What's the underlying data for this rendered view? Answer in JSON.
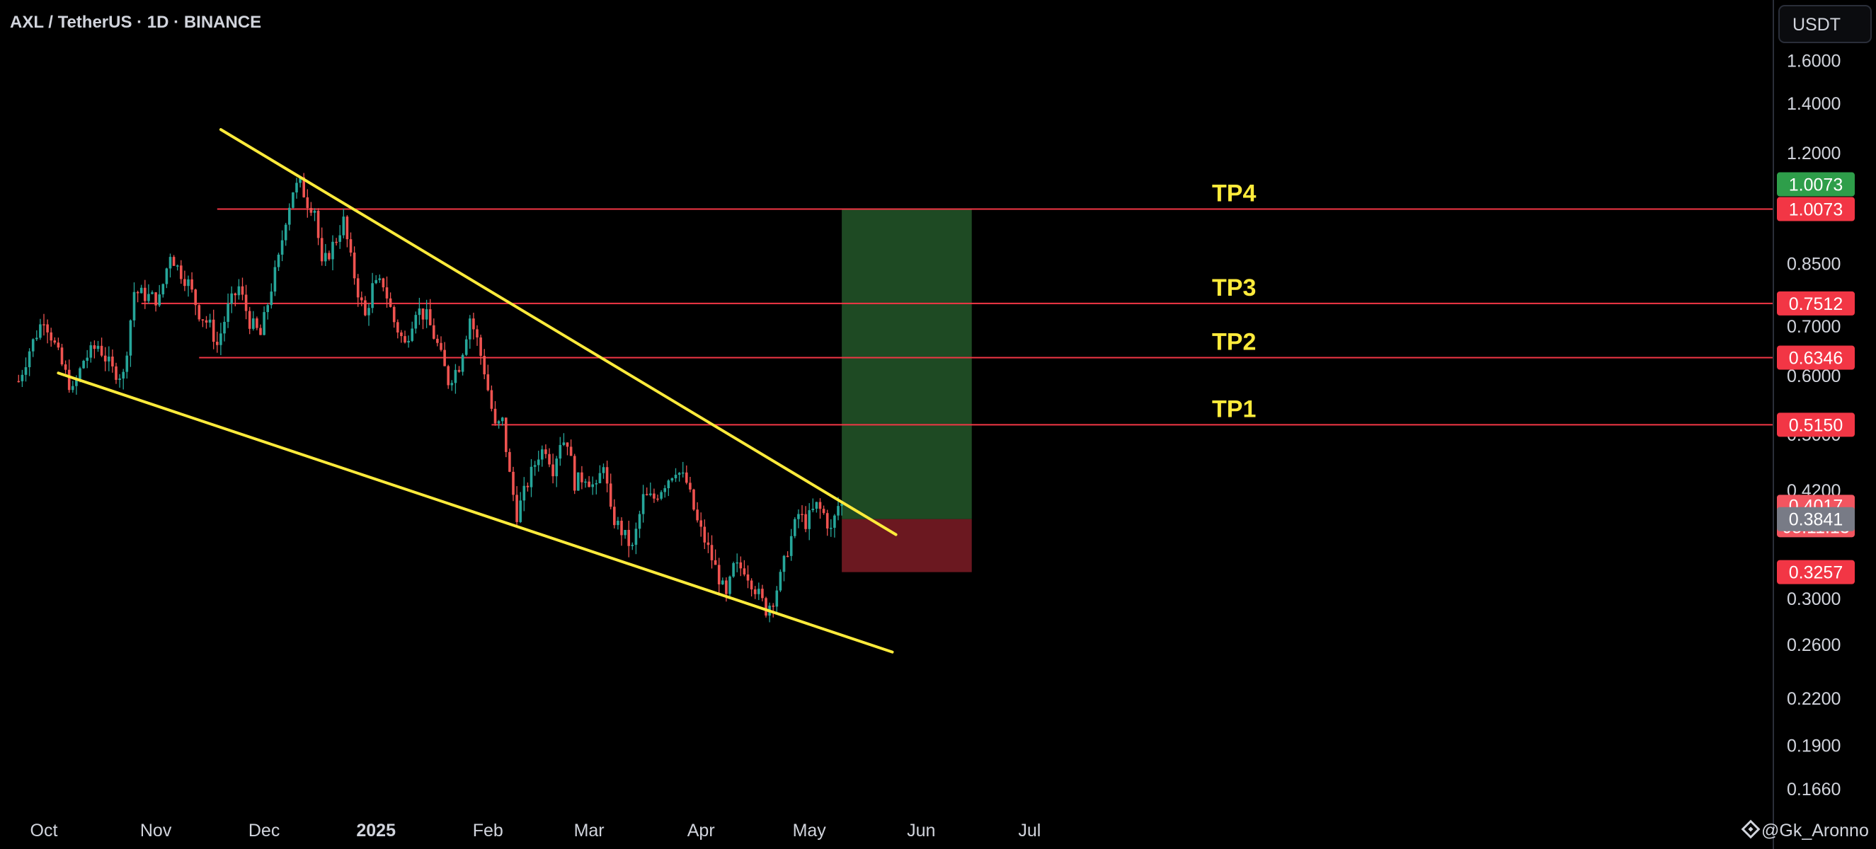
{
  "header": {
    "title": "AXL / TetherUS · 1D · BINANCE"
  },
  "currency_button": {
    "label": "USDT"
  },
  "watermark": {
    "label": "Gk_Aronno"
  },
  "colors": {
    "background": "#000000",
    "up_candle": "#26a69a",
    "down_candle": "#ef5350",
    "trendline": "#ffeb3b",
    "level_line": "#f23645",
    "target_zone": "#1e4a23",
    "stop_zone": "#6b1820",
    "target_tag": "#2e9e4a",
    "stop_tag": "#f23645",
    "entry_tag": "#787b86",
    "price_tag": "#f25560"
  },
  "chart_data": {
    "type": "candlestick",
    "title": "AXL / TetherUS · 1D · BINANCE",
    "scale": "log",
    "ylim": [
      0.155,
      1.75
    ],
    "x_ticks": [
      {
        "label": "Oct",
        "date": "2024-10-01",
        "bold": false
      },
      {
        "label": "Nov",
        "date": "2024-11-01",
        "bold": false
      },
      {
        "label": "Dec",
        "date": "2024-12-01",
        "bold": false
      },
      {
        "label": "2025",
        "date": "2025-01-01",
        "bold": true
      },
      {
        "label": "Feb",
        "date": "2025-02-01",
        "bold": false
      },
      {
        "label": "Mar",
        "date": "2025-03-01",
        "bold": false
      },
      {
        "label": "Apr",
        "date": "2025-04-01",
        "bold": false
      },
      {
        "label": "May",
        "date": "2025-05-01",
        "bold": false
      },
      {
        "label": "Jun",
        "date": "2025-06-01",
        "bold": false
      },
      {
        "label": "Jul",
        "date": "2025-07-01",
        "bold": false
      }
    ],
    "y_ticks": [
      "1.6000",
      "1.4000",
      "1.2000",
      "0.8500",
      "0.7000",
      "0.6000",
      "0.5000",
      "0.4200",
      "0.3000",
      "0.2600",
      "0.2200",
      "0.1900",
      "0.1660"
    ],
    "price_series": [
      [
        "2024-09-24",
        0.59
      ],
      [
        "2024-09-27",
        0.65
      ],
      [
        "2024-10-01",
        0.72
      ],
      [
        "2024-10-03",
        0.68
      ],
      [
        "2024-10-06",
        0.62
      ],
      [
        "2024-10-09",
        0.57
      ],
      [
        "2024-10-12",
        0.63
      ],
      [
        "2024-10-16",
        0.66
      ],
      [
        "2024-10-20",
        0.61
      ],
      [
        "2024-10-23",
        0.6
      ],
      [
        "2024-10-26",
        0.78
      ],
      [
        "2024-10-29",
        0.77
      ],
      [
        "2024-11-02",
        0.76
      ],
      [
        "2024-11-05",
        0.88
      ],
      [
        "2024-11-07",
        0.84
      ],
      [
        "2024-11-10",
        0.8
      ],
      [
        "2024-11-13",
        0.73
      ],
      [
        "2024-11-16",
        0.7
      ],
      [
        "2024-11-18",
        0.66
      ],
      [
        "2024-11-21",
        0.74
      ],
      [
        "2024-11-24",
        0.79
      ],
      [
        "2024-11-27",
        0.71
      ],
      [
        "2024-11-30",
        0.68
      ],
      [
        "2024-12-03",
        0.79
      ],
      [
        "2024-12-05",
        0.86
      ],
      [
        "2024-12-07",
        0.98
      ],
      [
        "2024-12-09",
        1.07
      ],
      [
        "2024-12-11",
        1.09
      ],
      [
        "2024-12-13",
        1.03
      ],
      [
        "2024-12-15",
        1.01
      ],
      [
        "2024-12-17",
        0.84
      ],
      [
        "2024-12-19",
        0.88
      ],
      [
        "2024-12-21",
        0.92
      ],
      [
        "2024-12-23",
        0.97
      ],
      [
        "2024-12-25",
        0.86
      ],
      [
        "2024-12-27",
        0.78
      ],
      [
        "2024-12-29",
        0.72
      ],
      [
        "2024-12-31",
        0.79
      ],
      [
        "2025-01-03",
        0.8
      ],
      [
        "2025-01-06",
        0.71
      ],
      [
        "2025-01-09",
        0.66
      ],
      [
        "2025-01-12",
        0.74
      ],
      [
        "2025-01-15",
        0.72
      ],
      [
        "2025-01-18",
        0.66
      ],
      [
        "2025-01-21",
        0.59
      ],
      [
        "2025-01-24",
        0.62
      ],
      [
        "2025-01-27",
        0.72
      ],
      [
        "2025-01-29",
        0.67
      ],
      [
        "2025-01-31",
        0.61
      ],
      [
        "2025-02-03",
        0.51
      ],
      [
        "2025-02-05",
        0.52
      ],
      [
        "2025-02-07",
        0.44
      ],
      [
        "2025-02-09",
        0.39
      ],
      [
        "2025-02-12",
        0.43
      ],
      [
        "2025-02-15",
        0.47
      ],
      [
        "2025-02-17",
        0.48
      ],
      [
        "2025-02-19",
        0.45
      ],
      [
        "2025-02-21",
        0.49
      ],
      [
        "2025-02-23",
        0.49
      ],
      [
        "2025-02-25",
        0.43
      ],
      [
        "2025-02-28",
        0.44
      ],
      [
        "2025-03-03",
        0.42
      ],
      [
        "2025-03-05",
        0.46
      ],
      [
        "2025-03-07",
        0.39
      ],
      [
        "2025-03-10",
        0.37
      ],
      [
        "2025-03-13",
        0.35
      ],
      [
        "2025-03-16",
        0.41
      ],
      [
        "2025-03-19",
        0.41
      ],
      [
        "2025-03-22",
        0.43
      ],
      [
        "2025-03-25",
        0.45
      ],
      [
        "2025-03-28",
        0.43
      ],
      [
        "2025-03-31",
        0.38
      ],
      [
        "2025-04-03",
        0.35
      ],
      [
        "2025-04-06",
        0.32
      ],
      [
        "2025-04-08",
        0.3
      ],
      [
        "2025-04-10",
        0.33
      ],
      [
        "2025-04-13",
        0.33
      ],
      [
        "2025-04-16",
        0.31
      ],
      [
        "2025-04-19",
        0.29
      ],
      [
        "2025-04-21",
        0.3
      ],
      [
        "2025-04-23",
        0.32
      ],
      [
        "2025-04-25",
        0.35
      ],
      [
        "2025-04-28",
        0.39
      ],
      [
        "2025-04-30",
        0.38
      ],
      [
        "2025-05-03",
        0.4
      ],
      [
        "2025-05-05",
        0.39
      ],
      [
        "2025-05-07",
        0.37
      ],
      [
        "2025-05-09",
        0.4
      ],
      [
        "2025-05-10",
        0.4017
      ]
    ],
    "trendlines": [
      {
        "name": "upper",
        "points": [
          [
            "2024-11-19",
            1.29
          ],
          [
            "2025-05-25",
            0.366
          ]
        ]
      },
      {
        "name": "lower",
        "points": [
          [
            "2024-10-05",
            0.605
          ],
          [
            "2025-05-24",
            0.254
          ]
        ]
      }
    ],
    "levels": [
      {
        "name": "TP4",
        "value": 1.0073,
        "start": "2024-11-18",
        "tag": "1.0073"
      },
      {
        "name": "TP3",
        "value": 0.7512,
        "start": "2024-10-28",
        "tag": "0.7512"
      },
      {
        "name": "TP2",
        "value": 0.6346,
        "start": "2024-11-13",
        "tag": "0.6346"
      },
      {
        "name": "TP1",
        "value": 0.515,
        "start": "2025-02-02",
        "tag": "0.5150"
      }
    ],
    "position": {
      "entry": 0.3841,
      "target": 1.0073,
      "stop": 0.3257,
      "start": "2025-05-10",
      "end": "2025-06-15"
    },
    "price_tags": {
      "target_top": "1.0073",
      "current": "0.4017",
      "countdown": "08:11:13",
      "entry": "0.3841",
      "stop": "0.3257"
    }
  }
}
